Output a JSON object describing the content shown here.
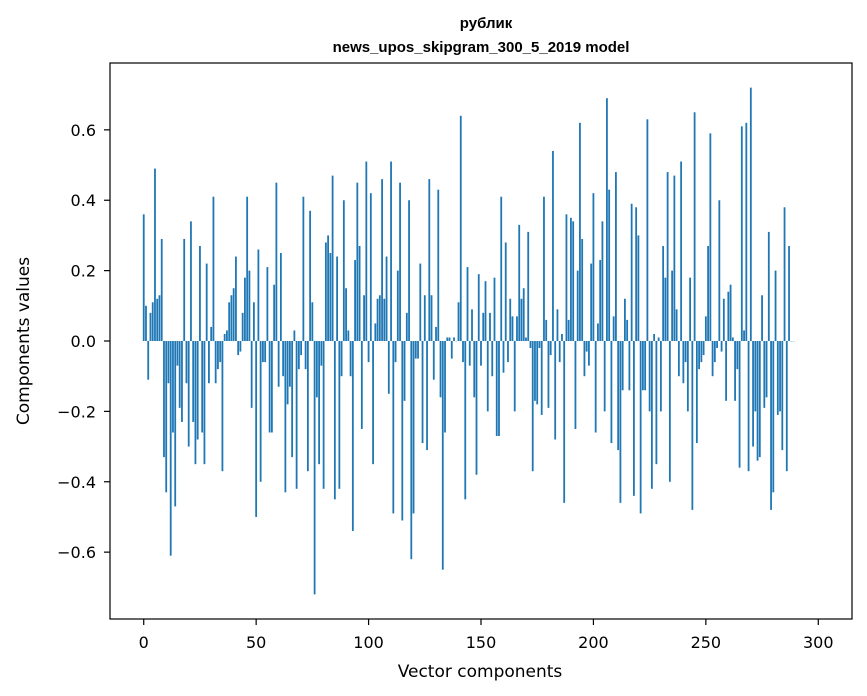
{
  "chart_data": {
    "type": "bar",
    "title": "рублик",
    "subtitle": "news_upos_skipgram_300_5_2019 model",
    "xlabel": "Vector components",
    "ylabel": "Components values",
    "xlim": [
      -15,
      315
    ],
    "ylim": [
      -0.79,
      0.79
    ],
    "xticks": [
      0,
      50,
      100,
      150,
      200,
      250,
      300
    ],
    "xtick_labels": [
      "0",
      "50",
      "100",
      "150",
      "200",
      "250",
      "300"
    ],
    "yticks": [
      -0.6,
      -0.4,
      -0.2,
      0.0,
      0.2,
      0.4,
      0.6
    ],
    "ytick_labels": [
      "−0.6",
      "−0.4",
      "−0.2",
      "0.0",
      "0.2",
      "0.4",
      "0.6"
    ],
    "grid": false,
    "color": "#1f77b4",
    "values": [
      0.36,
      0.1,
      -0.11,
      0.08,
      0.11,
      0.49,
      0.12,
      0.13,
      0.29,
      -0.33,
      -0.43,
      -0.12,
      -0.61,
      -0.26,
      -0.47,
      -0.07,
      -0.19,
      -0.23,
      0.29,
      -0.12,
      -0.3,
      0.34,
      -0.23,
      -0.35,
      -0.28,
      0.27,
      -0.26,
      -0.35,
      0.22,
      -0.12,
      0.04,
      0.41,
      -0.12,
      -0.08,
      -0.06,
      -0.37,
      0.02,
      0.03,
      0.11,
      0.13,
      0.15,
      0.24,
      -0.04,
      -0.03,
      0.08,
      0.18,
      0.41,
      0.2,
      -0.19,
      0.11,
      -0.5,
      0.26,
      -0.4,
      -0.06,
      -0.06,
      0.21,
      -0.26,
      -0.26,
      0.16,
      0.45,
      -0.13,
      0.25,
      -0.1,
      -0.43,
      -0.18,
      -0.13,
      -0.33,
      0.03,
      -0.42,
      -0.08,
      -0.04,
      0.41,
      -0.08,
      -0.37,
      0.37,
      0.11,
      -0.72,
      -0.16,
      -0.35,
      -0.07,
      -0.42,
      0.28,
      0.3,
      0.25,
      0.47,
      -0.45,
      0.24,
      -0.42,
      -0.1,
      0.4,
      0.15,
      0.03,
      -0.1,
      -0.54,
      0.23,
      0.45,
      0.27,
      -0.25,
      0.13,
      0.51,
      -0.06,
      0.42,
      -0.35,
      0.05,
      0.12,
      0.13,
      0.46,
      0.12,
      0.24,
      -0.15,
      0.51,
      -0.49,
      -0.06,
      0.2,
      0.45,
      -0.51,
      -0.17,
      0.08,
      0.4,
      -0.62,
      -0.49,
      -0.05,
      -0.05,
      0.22,
      -0.29,
      0.13,
      -0.31,
      0.46,
      0.13,
      -0.11,
      0.04,
      0.43,
      -0.16,
      -0.65,
      -0.26,
      0.01,
      0.01,
      -0.05,
      0.01,
      0.0,
      0.11,
      0.64,
      -0.06,
      -0.45,
      0.21,
      -0.07,
      0.09,
      -0.16,
      -0.38,
      0.19,
      -0.07,
      0.08,
      0.17,
      -0.2,
      0.08,
      -0.1,
      0.18,
      -0.27,
      -0.27,
      0.41,
      -0.09,
      0.28,
      -0.06,
      0.12,
      0.07,
      -0.2,
      0.07,
      0.33,
      0.12,
      0.15,
      0.01,
      0.31,
      -0.02,
      -0.37,
      -0.17,
      -0.18,
      -0.02,
      -0.21,
      0.41,
      0.06,
      -0.19,
      -0.04,
      0.54,
      -0.28,
      0.09,
      -0.06,
      0.02,
      -0.46,
      0.36,
      0.06,
      0.35,
      0.34,
      -0.25,
      0.2,
      0.62,
      0.29,
      -0.1,
      -0.03,
      -0.07,
      0.22,
      0.42,
      -0.26,
      0.05,
      0.23,
      0.34,
      -0.2,
      0.69,
      0.43,
      -0.29,
      0.07,
      0.48,
      -0.31,
      -0.46,
      -0.14,
      0.12,
      0.06,
      -0.14,
      0.39,
      -0.44,
      0.38,
      0.3,
      -0.49,
      -0.14,
      -0.14,
      0.63,
      -0.2,
      -0.42,
      0.02,
      -0.35,
      0.01,
      -0.2,
      0.27,
      0.18,
      0.48,
      -0.4,
      0.2,
      0.47,
      0.09,
      -0.1,
      0.51,
      -0.12,
      -0.06,
      -0.2,
      0.18,
      -0.48,
      0.65,
      -0.29,
      -0.08,
      -0.06,
      -0.04,
      0.07,
      0.27,
      0.59,
      -0.1,
      -0.06,
      -0.02,
      0.4,
      -0.03,
      0.12,
      -0.17,
      0.14,
      0.16,
      0.01,
      -0.17,
      -0.08,
      -0.36,
      0.61,
      0.03,
      0.62,
      -0.37,
      0.72,
      -0.3,
      -0.2,
      -0.34,
      -0.33,
      0.13,
      -0.19,
      -0.16,
      0.31,
      -0.48,
      -0.43,
      0.2,
      -0.21,
      -0.2,
      -0.31,
      0.38,
      -0.37,
      0.27,
      0.0,
      0.0
    ]
  }
}
